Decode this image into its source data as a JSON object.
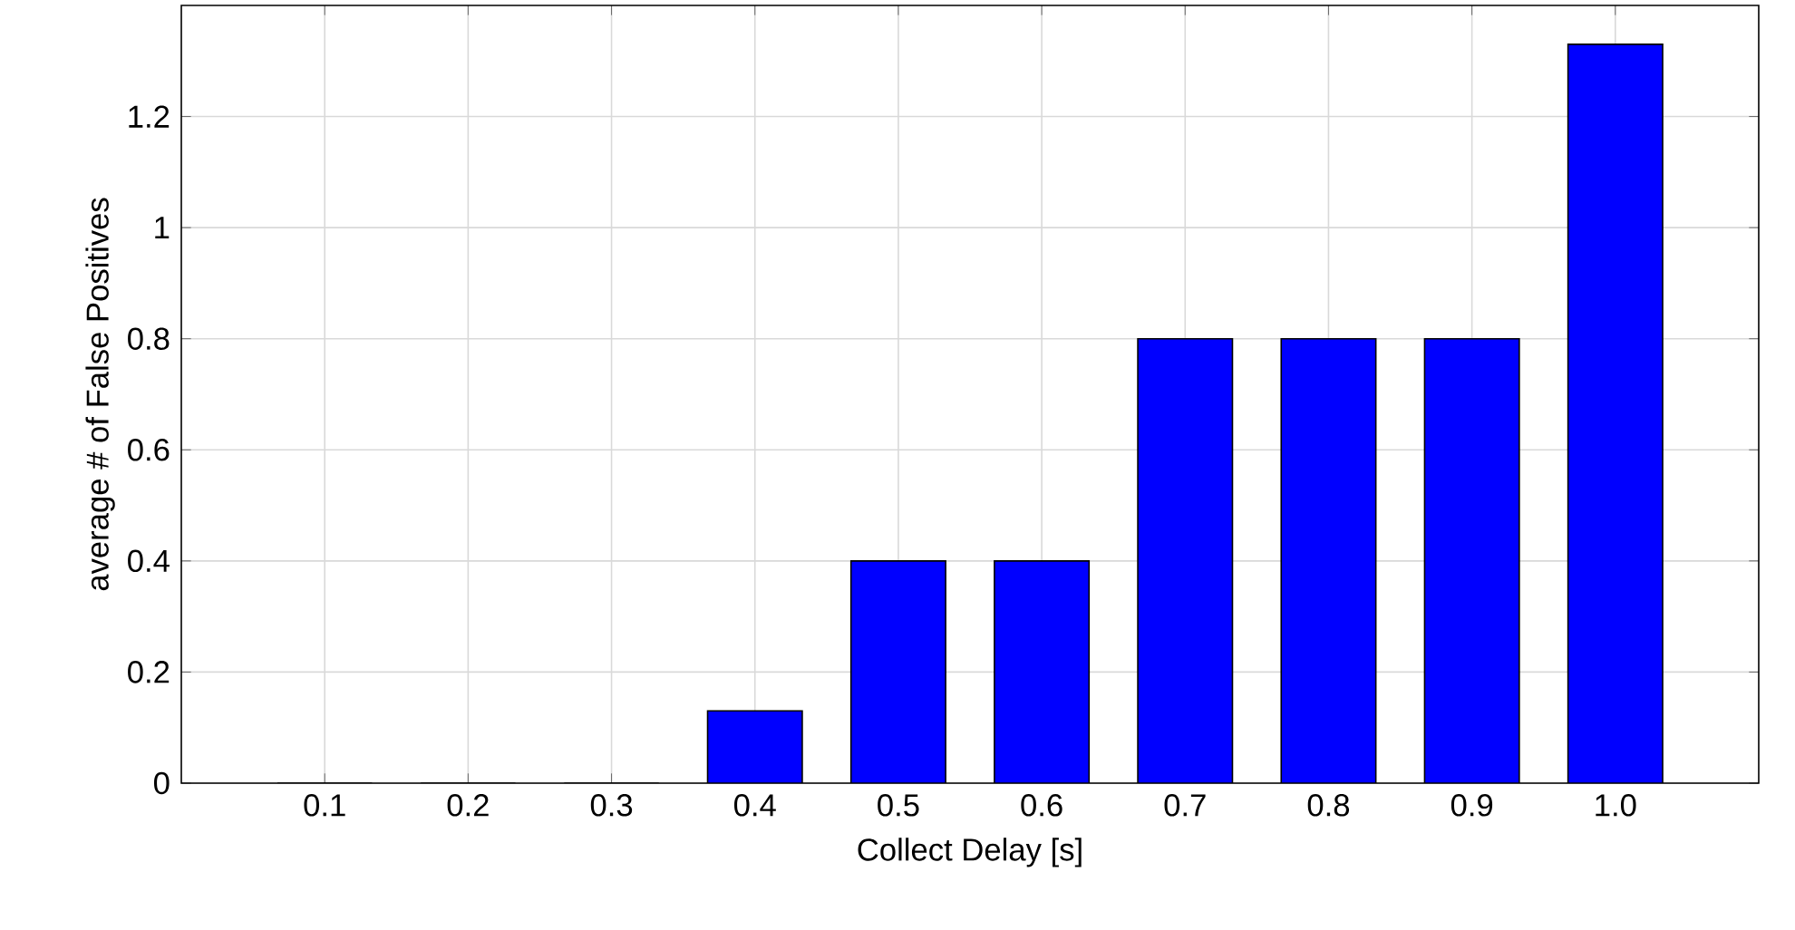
{
  "chart_data": {
    "type": "bar",
    "categories": [
      "0.1",
      "0.2",
      "0.3",
      "0.4",
      "0.5",
      "0.6",
      "0.7",
      "0.8",
      "0.9",
      "1.0"
    ],
    "values": [
      0,
      0,
      0,
      0.13,
      0.4,
      0.4,
      0.8,
      0.8,
      0.8,
      1.33
    ],
    "color": "#0000ff",
    "xlabel": "Collect Delay [s]",
    "ylabel": "average # of False Positives",
    "ylim": [
      0,
      1.4
    ],
    "yticks": [
      0,
      0.2,
      0.4,
      0.6,
      0.8,
      1,
      1.2
    ],
    "grid": true
  }
}
